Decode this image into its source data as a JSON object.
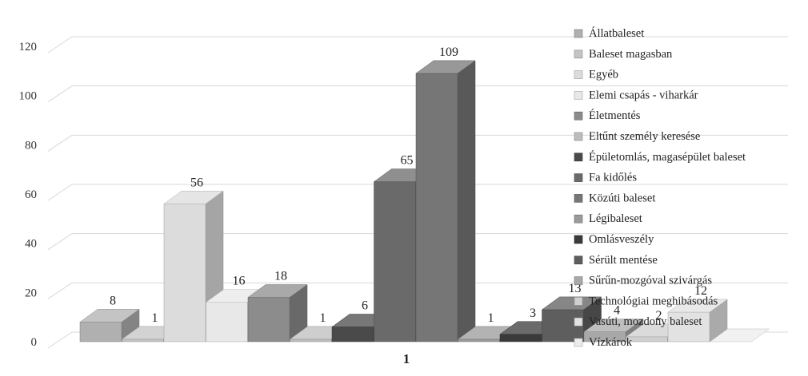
{
  "chart_data": {
    "type": "bar",
    "title": "",
    "xlabel": "",
    "ylabel": "",
    "ylim": [
      0,
      120
    ],
    "yticks": [
      "0",
      "20",
      "40",
      "60",
      "80",
      "100",
      "120"
    ],
    "categories": [
      "1"
    ],
    "grid": true,
    "legend_position": "right",
    "series": [
      {
        "name": "Állatbaleset",
        "values": [
          8
        ],
        "label": "8",
        "color": "#b0b0b0"
      },
      {
        "name": "Baleset magasban",
        "values": [
          1
        ],
        "label": "1",
        "color": "#c4c4c4"
      },
      {
        "name": "Egyéb",
        "values": [
          56
        ],
        "label": "56",
        "color": "#dcdcdc"
      },
      {
        "name": "Elemi csapás - viharkár",
        "values": [
          16
        ],
        "label": "16",
        "color": "#e8e8e8"
      },
      {
        "name": "Életmentés",
        "values": [
          18
        ],
        "label": "18",
        "color": "#8c8c8c"
      },
      {
        "name": "Eltűnt személy keresése",
        "values": [
          1
        ],
        "label": "1",
        "color": "#bdbdbd"
      },
      {
        "name": "Épületomlás, magasépület baleset",
        "values": [
          6
        ],
        "label": "6",
        "color": "#4a4a4a"
      },
      {
        "name": "Fa kidőlés",
        "values": [
          65
        ],
        "label": "65",
        "color": "#6a6a6a"
      },
      {
        "name": "Közúti baleset",
        "values": [
          109
        ],
        "label": "109",
        "color": "#767676"
      },
      {
        "name": "Légibaleset",
        "values": [
          1
        ],
        "label": "1",
        "color": "#9a9a9a"
      },
      {
        "name": "Omlásveszély",
        "values": [
          3
        ],
        "label": "3",
        "color": "#3a3a3a"
      },
      {
        "name": "Sérült mentése",
        "values": [
          13
        ],
        "label": "13",
        "color": "#5e5e5e"
      },
      {
        "name": "Sűrűn-mozgóval szivárgás",
        "values": [
          4
        ],
        "label": "4",
        "color": "#a8a8a8"
      },
      {
        "name": "Technológiai meghibásodás",
        "values": [
          2
        ],
        "label": "2",
        "color": "#cfcfcf"
      },
      {
        "name": "Vasúti, mozdony baleset",
        "values": [
          12
        ],
        "label": "12",
        "color": "#e2e2e2"
      },
      {
        "name": "Vízkárok",
        "values": [
          0
        ],
        "label": "",
        "color": "#ececec"
      }
    ]
  }
}
